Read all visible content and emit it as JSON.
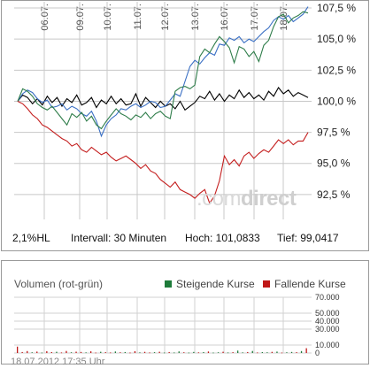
{
  "footer": {
    "hl": "2,1%HL",
    "interval": "Intervall: 30 Minuten",
    "high": "Hoch: 101,0833",
    "low": "Tief: 99,0417"
  },
  "watermark": {
    "part1": ".com",
    "part2": "direct"
  },
  "volume": {
    "title": "Volumen (rot-grün)",
    "legend_up": "Steigende Kurse",
    "legend_down": "Fallende Kurse",
    "color_up": "#1e7b3a",
    "color_down": "#c01818"
  },
  "timestamp": "18.07.2012 17:35 Uhr",
  "chart_data": [
    {
      "type": "line",
      "x_ticks": [
        "06.07.",
        "09.07.",
        "10.07.",
        "11.07.",
        "12.07.",
        "13.07.",
        "16.07.",
        "17.07.",
        "18.07."
      ],
      "y_ticks": [
        "107,5 %",
        "105,0 %",
        "102,5 %",
        "100,0 %",
        "97,5 %",
        "95,0 %",
        "92,5 %"
      ],
      "y_tick_values": [
        107.5,
        105.0,
        102.5,
        100.0,
        97.5,
        95.0,
        92.5
      ],
      "ylim": [
        90.5,
        108
      ],
      "grid": true,
      "series": [
        {
          "color": "#000000",
          "values": [
            100.0,
            100.5,
            100.3,
            99.8,
            100.2,
            99.7,
            100.4,
            99.9,
            100.3,
            99.6,
            100.2,
            99.9,
            100.5,
            99.7,
            99.9,
            100.3,
            99.5,
            100.1,
            99.8,
            100.4,
            99.8,
            100.2,
            99.7,
            99.8,
            100.6,
            99.6,
            100.3,
            99.9,
            99.5,
            100.0,
            99.6,
            99.8,
            99.4,
            100.0,
            99.3,
            99.6,
            99.9,
            100.4,
            100.2,
            100.8,
            100.1,
            100.6,
            100.0,
            100.5,
            100.2,
            100.9,
            100.3,
            100.7,
            100.2,
            100.5,
            100.1,
            100.8,
            100.4,
            101.1,
            100.6,
            100.9,
            100.4,
            100.7,
            100.5,
            100.3
          ]
        },
        {
          "color": "#3a6fc4",
          "values": [
            100.0,
            100.6,
            100.9,
            100.7,
            100.2,
            99.9,
            100.1,
            99.5,
            99.6,
            99.8,
            99.3,
            99.6,
            99.4,
            99.0,
            98.8,
            99.2,
            98.4,
            97.2,
            98.1,
            98.6,
            98.9,
            99.4,
            99.3,
            99.6,
            99.8,
            99.5,
            99.7,
            100.0,
            99.9,
            99.5,
            99.6,
            100.1,
            100.6,
            100.4,
            101.6,
            102.8,
            103.3,
            103.0,
            103.5,
            103.9,
            103.7,
            104.6,
            104.5,
            105.1,
            104.9,
            105.2,
            104.7,
            105.0,
            104.8,
            105.2,
            105.6,
            105.9,
            106.5,
            106.8,
            106.6,
            106.9,
            106.4,
            106.7,
            107.0,
            107.6
          ]
        },
        {
          "color": "#2f7d4a",
          "values": [
            100.0,
            101.0,
            100.8,
            100.4,
            99.8,
            99.5,
            99.3,
            99.6,
            99.1,
            98.6,
            98.1,
            99.0,
            98.7,
            99.1,
            98.4,
            98.8,
            98.1,
            97.8,
            98.4,
            98.9,
            99.4,
            99.0,
            98.8,
            98.5,
            98.9,
            98.7,
            99.1,
            98.6,
            99.0,
            99.2,
            98.8,
            98.6,
            100.8,
            101.1,
            101.2,
            101.0,
            101.3,
            103.6,
            104.2,
            103.9,
            104.6,
            105.2,
            104.8,
            104.3,
            103.1,
            104.4,
            104.2,
            103.6,
            104.0,
            103.2,
            104.5,
            104.9,
            106.0,
            106.8,
            107.0,
            106.3,
            106.7,
            106.9,
            107.2,
            107.1
          ]
        },
        {
          "color": "#c41d1d",
          "values": [
            100.0,
            99.8,
            99.4,
            98.9,
            98.6,
            98.1,
            97.9,
            97.6,
            97.3,
            97.0,
            96.8,
            96.4,
            96.6,
            96.1,
            95.9,
            96.3,
            96.0,
            95.7,
            95.9,
            95.5,
            95.2,
            95.4,
            95.6,
            95.3,
            95.0,
            94.6,
            94.9,
            94.4,
            94.2,
            93.7,
            93.4,
            93.1,
            93.5,
            92.9,
            92.7,
            92.5,
            92.2,
            92.6,
            92.9,
            91.8,
            92.4,
            93.6,
            95.6,
            94.9,
            95.3,
            94.8,
            95.6,
            95.9,
            95.4,
            95.8,
            96.1,
            95.9,
            96.4,
            96.9,
            96.6,
            96.9,
            96.5,
            96.8,
            96.8,
            97.5
          ]
        }
      ]
    },
    {
      "type": "bar",
      "y_ticks": [
        "70.000",
        "50.000",
        "40.000",
        "30.000",
        "10.000",
        "0"
      ],
      "y_tick_values": [
        70000,
        50000,
        40000,
        30000,
        10000,
        0
      ],
      "ylim": [
        0,
        70000
      ],
      "values": [
        8000,
        1200,
        2500,
        900,
        1800,
        600,
        2200,
        1100,
        1500,
        700,
        2600,
        900,
        1700,
        1300,
        800,
        2100,
        600,
        1500,
        1000,
        700,
        1900,
        900,
        1200,
        600,
        2300,
        800,
        1400,
        700,
        1000,
        1600,
        600,
        1200,
        700,
        2000,
        900,
        600,
        1300,
        800,
        1100,
        1900,
        600,
        900,
        1500,
        700,
        1000,
        3000,
        800,
        1200,
        2600,
        700,
        1100,
        900,
        1400,
        1800,
        600,
        900,
        1300,
        1000,
        2400,
        6000
      ],
      "colors": [
        "d",
        "d",
        "d",
        "u",
        "d",
        "u",
        "d",
        "d",
        "u",
        "d",
        "d",
        "u",
        "d",
        "d",
        "u",
        "d",
        "d",
        "u",
        "d",
        "d",
        "u",
        "d",
        "u",
        "d",
        "d",
        "u",
        "d",
        "d",
        "u",
        "d",
        "u",
        "d",
        "u",
        "u",
        "d",
        "u",
        "u",
        "d",
        "u",
        "d",
        "u",
        "u",
        "d",
        "u",
        "d",
        "u",
        "u",
        "d",
        "u",
        "d",
        "u",
        "u",
        "d",
        "u",
        "d",
        "u",
        "u",
        "d",
        "u",
        "d"
      ]
    }
  ]
}
